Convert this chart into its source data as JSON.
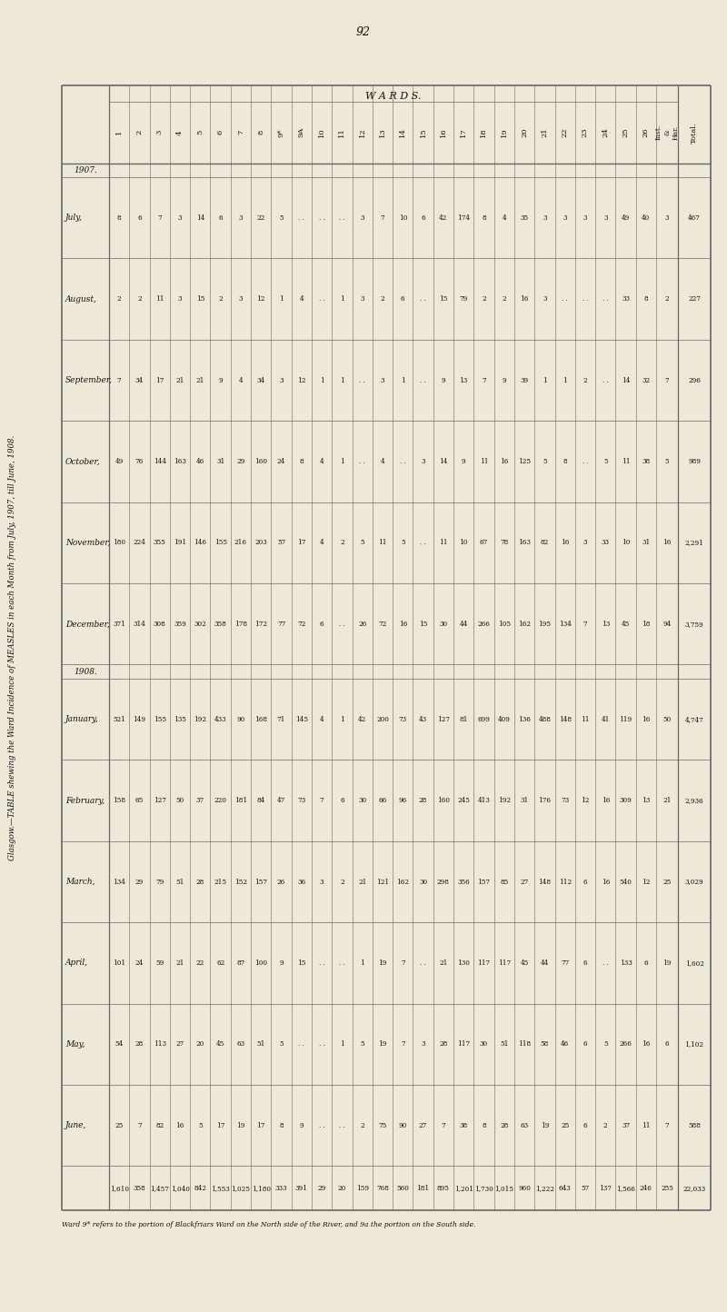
{
  "page_num": "92",
  "title_rotated": "Glasgow.—TABLE shewing the Ward Incidence of MEASLES in each Month from July, 1907, till June, 1908.",
  "wards_label": "W A R D S.",
  "footnote": "Ward 9* refers to the portion of Blackfriars Ward on the North side of the River, and 9a the portion on the South side.",
  "data": {
    "July": [
      8,
      6,
      7,
      3,
      14,
      6,
      3,
      22,
      5,
      "",
      "",
      "",
      3,
      7,
      10,
      6,
      42,
      174,
      8,
      4,
      35,
      3,
      3,
      3,
      3,
      49,
      40,
      3,
      467
    ],
    "August": [
      2,
      2,
      11,
      3,
      15,
      2,
      3,
      12,
      1,
      4,
      "",
      1,
      3,
      2,
      6,
      "",
      15,
      79,
      2,
      2,
      16,
      3,
      "",
      "",
      "",
      33,
      8,
      2,
      227
    ],
    "September": [
      7,
      34,
      17,
      21,
      21,
      9,
      4,
      34,
      3,
      12,
      1,
      1,
      "",
      3,
      1,
      "",
      9,
      13,
      7,
      9,
      39,
      1,
      1,
      2,
      "",
      14,
      32,
      7,
      296
    ],
    "October": [
      49,
      76,
      144,
      163,
      46,
      31,
      29,
      160,
      24,
      8,
      4,
      1,
      "",
      4,
      "",
      3,
      14,
      9,
      11,
      16,
      125,
      5,
      8,
      "",
      5,
      11,
      38,
      5,
      989
    ],
    "November": [
      180,
      224,
      355,
      191,
      146,
      155,
      216,
      203,
      57,
      17,
      4,
      2,
      5,
      11,
      5,
      "",
      11,
      10,
      67,
      78,
      163,
      82,
      16,
      3,
      33,
      10,
      31,
      16,
      2291
    ],
    "December": [
      371,
      314,
      308,
      359,
      302,
      358,
      178,
      172,
      77,
      72,
      6,
      "",
      26,
      72,
      16,
      15,
      30,
      44,
      266,
      105,
      162,
      195,
      134,
      7,
      13,
      45,
      18,
      94,
      3759
    ],
    "January": [
      521,
      149,
      155,
      135,
      192,
      433,
      90,
      168,
      71,
      145,
      4,
      1,
      42,
      200,
      73,
      43,
      127,
      81,
      699,
      409,
      136,
      488,
      148,
      11,
      41,
      119,
      16,
      50,
      4747
    ],
    "February": [
      158,
      65,
      127,
      50,
      37,
      220,
      181,
      84,
      47,
      73,
      7,
      6,
      30,
      66,
      96,
      28,
      160,
      245,
      413,
      192,
      31,
      176,
      73,
      12,
      16,
      309,
      13,
      21,
      2936
    ],
    "March": [
      134,
      29,
      79,
      51,
      28,
      215,
      152,
      157,
      26,
      36,
      3,
      2,
      21,
      121,
      162,
      30,
      298,
      356,
      157,
      85,
      27,
      148,
      112,
      6,
      16,
      540,
      12,
      25,
      3029
    ],
    "April": [
      101,
      24,
      59,
      21,
      22,
      62,
      87,
      100,
      9,
      15,
      "",
      "",
      1,
      19,
      7,
      "",
      21,
      130,
      117,
      117,
      45,
      44,
      77,
      6,
      "",
      133,
      6,
      19,
      1602
    ],
    "May": [
      54,
      28,
      113,
      27,
      20,
      45,
      63,
      51,
      5,
      "",
      "",
      1,
      5,
      19,
      7,
      3,
      28,
      117,
      30,
      51,
      118,
      58,
      46,
      6,
      5,
      266,
      16,
      6,
      1102
    ],
    "June": [
      25,
      7,
      82,
      16,
      5,
      17,
      19,
      17,
      8,
      9,
      "",
      "",
      2,
      75,
      90,
      27,
      7,
      38,
      8,
      28,
      63,
      19,
      25,
      6,
      2,
      37,
      11,
      7,
      588
    ],
    "Total": [
      1610,
      358,
      1457,
      1040,
      842,
      1553,
      1025,
      1180,
      333,
      391,
      29,
      20,
      159,
      768,
      560,
      181,
      895,
      1201,
      1730,
      1015,
      960,
      1222,
      643,
      57,
      137,
      1566,
      246,
      255,
      22033
    ]
  },
  "col_headers": [
    "1",
    "2",
    "3",
    "4",
    "5",
    "6",
    "7",
    "8",
    "9*",
    "9A",
    "10",
    "11",
    "12",
    "13",
    "14",
    "15",
    "16",
    "17",
    "18",
    "19",
    "20",
    "21",
    "22",
    "23",
    "24",
    "25",
    "26",
    "Inst.\n&\nHar.",
    "Total."
  ],
  "bg_color": "#ede8d8",
  "line_color": "#666666",
  "text_color": "#111111"
}
